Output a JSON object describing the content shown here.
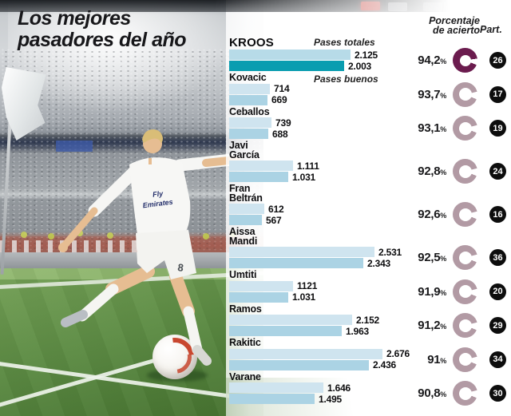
{
  "title": {
    "line1": "Los mejores",
    "line2": "pasadores del año"
  },
  "headers": {
    "accuracy_line1": "Porcentaje",
    "accuracy_line2": "de acierto",
    "participations": "Part."
  },
  "legend": {
    "totales": "Pases totales",
    "buenos": "Pases buenos"
  },
  "labels": {
    "percent_sign": "%"
  },
  "photo": {
    "description_icons": [
      "corner-flag-icon",
      "football-icon",
      "player-kroos-figure"
    ]
  },
  "colors": {
    "bar_totales": "#cfe4ef",
    "bar_buenos": "#abd3e4",
    "kroos_totales": "#b7dbe8",
    "kroos_buenos": "#0a9db0",
    "donut": "#b29aa4",
    "donut_highlight": "#6b1c4e",
    "badge_bg": "#0d0d0d",
    "badge_text": "#ffffff",
    "text": "#0d0d0f"
  },
  "chart_data": {
    "type": "bar",
    "orientation": "horizontal",
    "title": "Los mejores pasadores del año",
    "series_names": [
      "Pases totales",
      "Pases buenos"
    ],
    "x_max": 2676,
    "grid": false,
    "players": [
      {
        "name_lines": [
          "KROOS"
        ],
        "highlight": true,
        "totales": 2125,
        "buenos": 2003,
        "totales_label": "2.125",
        "buenos_label": "2.003",
        "accuracy": 94.2,
        "accuracy_label": "94,2",
        "participations": 26,
        "part_label": "26"
      },
      {
        "name_lines": [
          "Kovacic"
        ],
        "highlight": false,
        "totales": 714,
        "buenos": 669,
        "totales_label": "714",
        "buenos_label": "669",
        "accuracy": 93.7,
        "accuracy_label": "93,7",
        "participations": 17,
        "part_label": "17"
      },
      {
        "name_lines": [
          "Ceballos"
        ],
        "highlight": false,
        "totales": 739,
        "buenos": 688,
        "totales_label": "739",
        "buenos_label": "688",
        "accuracy": 93.1,
        "accuracy_label": "93,1",
        "participations": 19,
        "part_label": "19"
      },
      {
        "name_lines": [
          "Javi",
          "García"
        ],
        "highlight": false,
        "totales": 1111,
        "buenos": 1031,
        "totales_label": "1.111",
        "buenos_label": "1.031",
        "accuracy": 92.8,
        "accuracy_label": "92,8",
        "participations": 24,
        "part_label": "24"
      },
      {
        "name_lines": [
          "Fran",
          "Beltrán"
        ],
        "highlight": false,
        "totales": 612,
        "buenos": 567,
        "totales_label": "612",
        "buenos_label": "567",
        "accuracy": 92.6,
        "accuracy_label": "92,6",
        "participations": 16,
        "part_label": "16"
      },
      {
        "name_lines": [
          "Aissa",
          "Mandi"
        ],
        "highlight": false,
        "totales": 2531,
        "buenos": 2343,
        "totales_label": "2.531",
        "buenos_label": "2.343",
        "accuracy": 92.5,
        "accuracy_label": "92,5",
        "participations": 36,
        "part_label": "36"
      },
      {
        "name_lines": [
          "Umtiti"
        ],
        "highlight": false,
        "totales": 1121,
        "buenos": 1031,
        "totales_label": "1121",
        "buenos_label": "1.031",
        "accuracy": 91.9,
        "accuracy_label": "91,9",
        "participations": 20,
        "part_label": "20"
      },
      {
        "name_lines": [
          "Ramos"
        ],
        "highlight": false,
        "totales": 2152,
        "buenos": 1963,
        "totales_label": "2.152",
        "buenos_label": "1.963",
        "accuracy": 91.2,
        "accuracy_label": "91,2",
        "participations": 29,
        "part_label": "29"
      },
      {
        "name_lines": [
          "Rakitic"
        ],
        "highlight": false,
        "totales": 2676,
        "buenos": 2436,
        "totales_label": "2.676",
        "buenos_label": "2.436",
        "accuracy": 91.0,
        "accuracy_label": "91",
        "participations": 34,
        "part_label": "34"
      },
      {
        "name_lines": [
          "Varane"
        ],
        "highlight": false,
        "totales": 1646,
        "buenos": 1495,
        "totales_label": "1.646",
        "buenos_label": "1.495",
        "accuracy": 90.8,
        "accuracy_label": "90,8",
        "participations": 30,
        "part_label": "30"
      }
    ]
  }
}
